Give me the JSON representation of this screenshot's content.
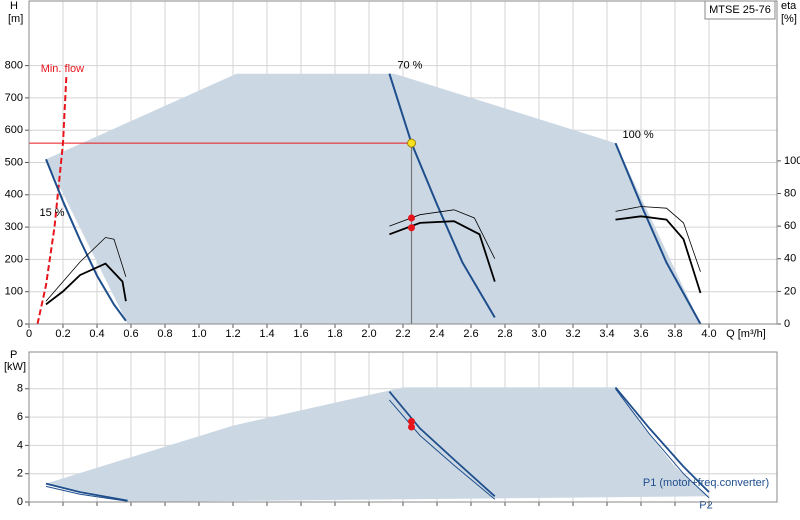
{
  "chart_data": [
    {
      "type": "line",
      "title": "MTSE 25-76",
      "y_label": "H",
      "y_unit": "[m]",
      "y2_label": "eta",
      "y2_unit": "[%]",
      "x_label": "Q [m³/h]",
      "xlim": [
        0,
        4.4
      ],
      "xticks": [
        0,
        0.2,
        0.4,
        0.6,
        0.8,
        {
          "value": 1,
          "label": "1.0"
        },
        1.2,
        1.4,
        1.6,
        1.8,
        {
          "value": 2,
          "label": "2.0"
        },
        2.2,
        2.4,
        2.6,
        2.8,
        {
          "value": 3,
          "label": "3.0"
        },
        3.2,
        3.4,
        3.6,
        3.8,
        {
          "value": 4,
          "label": "4.0"
        }
      ],
      "ylim": [
        0,
        1000
      ],
      "yticks": [
        0,
        100,
        200,
        300,
        400,
        500,
        600,
        700,
        800
      ],
      "y2lim": [
        0,
        198
      ],
      "y2ticks": [
        0,
        20,
        40,
        60,
        80,
        100
      ],
      "grid": true,
      "series": [
        {
          "kind": "area",
          "color": "#cbd8e4",
          "x": [
            0.1,
            1.22,
            2.15,
            3.45,
            3.95,
            0.58,
            0.1
          ],
          "values": [
            510,
            775,
            775,
            560,
            0,
            0,
            510
          ]
        },
        {
          "name": "Min. flow",
          "kind": "line",
          "dash": true,
          "width": 2,
          "color": "#e8141c",
          "x": [
            0.05,
            0.1,
            0.15,
            0.2,
            0.22
          ],
          "values": [
            0,
            120,
            300,
            560,
            770
          ]
        },
        {
          "name": "15 %",
          "kind": "line",
          "width": 2,
          "color": "#1f4e8c",
          "x": [
            0.1,
            0.2,
            0.3,
            0.4,
            0.5,
            0.57
          ],
          "values": [
            510,
            380,
            260,
            150,
            60,
            10
          ]
        },
        {
          "name": "70 %",
          "kind": "line",
          "width": 2,
          "color": "#1f4e8c",
          "x": [
            2.12,
            2.25,
            2.4,
            2.55,
            2.74
          ],
          "values": [
            775,
            560,
            370,
            190,
            20
          ]
        },
        {
          "name": "100 %",
          "kind": "line",
          "width": 2,
          "color": "#1f4e8c",
          "x": [
            3.45,
            3.6,
            3.75,
            3.95
          ],
          "values": [
            560,
            370,
            190,
            0
          ]
        },
        {
          "kind": "line",
          "axis": "y2",
          "width": 1.8,
          "color": "#000000",
          "x": [
            0.1,
            0.2,
            0.3,
            0.45,
            0.55,
            0.57
          ],
          "values": [
            12,
            20,
            30,
            37,
            26,
            14
          ]
        },
        {
          "kind": "line",
          "axis": "y2",
          "width": 0.8,
          "color": "#000000",
          "x": [
            0.1,
            0.2,
            0.3,
            0.45,
            0.5,
            0.57
          ],
          "values": [
            14,
            26,
            38,
            53,
            52,
            29
          ]
        },
        {
          "kind": "line",
          "axis": "y2",
          "width": 1.8,
          "color": "#000000",
          "x": [
            2.12,
            2.3,
            2.5,
            2.65,
            2.74
          ],
          "values": [
            55,
            62,
            63,
            55,
            26
          ]
        },
        {
          "kind": "line",
          "axis": "y2",
          "width": 0.8,
          "color": "#000000",
          "x": [
            2.12,
            2.3,
            2.5,
            2.62,
            2.74
          ],
          "values": [
            60,
            67,
            70,
            65,
            40
          ]
        },
        {
          "kind": "line",
          "axis": "y2",
          "width": 1.8,
          "color": "#000000",
          "x": [
            3.45,
            3.6,
            3.75,
            3.85,
            3.95
          ],
          "values": [
            64,
            66,
            64,
            52,
            19
          ]
        },
        {
          "kind": "line",
          "axis": "y2",
          "width": 0.8,
          "color": "#000000",
          "x": [
            3.45,
            3.6,
            3.75,
            3.85,
            3.95
          ],
          "values": [
            69,
            72,
            71,
            62,
            32
          ]
        }
      ],
      "operating_point": {
        "x": 2.25,
        "y": 560,
        "color": "#f5e11e",
        "guide_color": "#e8141c"
      },
      "points": [
        {
          "x": 2.25,
          "y": 65,
          "axis": "y2",
          "color": "#e8141c"
        },
        {
          "x": 2.25,
          "y": 59,
          "axis": "y2",
          "color": "#e8141c"
        }
      ]
    },
    {
      "type": "line",
      "y_label": "P",
      "y_unit": "[kW]",
      "xlim": [
        0,
        4.4
      ],
      "xticks": [
        0,
        0.2,
        0.4,
        0.6,
        0.8,
        1,
        1.2,
        1.4,
        1.6,
        1.8,
        2,
        2.2,
        2.4,
        2.6,
        2.8,
        3,
        3.2,
        3.4,
        3.6,
        3.8,
        4
      ],
      "x_tick_labels": false,
      "ylim": [
        0,
        10.6
      ],
      "yticks": [
        0,
        2,
        4,
        6,
        8
      ],
      "grid": true,
      "series": [
        {
          "kind": "area",
          "color": "#cbd8e4",
          "x": [
            0.1,
            1.2,
            2.2,
            3.45,
            3.6,
            3.8,
            4.0,
            0.58,
            0.1
          ],
          "values": [
            1.3,
            5.4,
            8.1,
            8.1,
            5.5,
            2.5,
            0.4,
            0,
            1.3
          ]
        },
        {
          "kind": "line",
          "width": 1.8,
          "color": "#1f4e8c",
          "x": [
            0.1,
            0.3,
            0.58
          ],
          "values": [
            1.3,
            0.7,
            0.1
          ]
        },
        {
          "kind": "line",
          "width": 1,
          "color": "#1f4e8c",
          "x": [
            0.1,
            0.3,
            0.58
          ],
          "values": [
            1.1,
            0.55,
            0.05
          ]
        },
        {
          "kind": "line",
          "width": 1.8,
          "color": "#1f4e8c",
          "x": [
            2.12,
            2.3,
            2.5,
            2.74
          ],
          "values": [
            7.8,
            5.2,
            3.0,
            0.4
          ]
        },
        {
          "kind": "line",
          "width": 1,
          "color": "#1f4e8c",
          "x": [
            2.12,
            2.3,
            2.5,
            2.74
          ],
          "values": [
            7.2,
            4.7,
            2.6,
            0.2
          ]
        },
        {
          "name": "P1 (motor+freq.converter)",
          "kind": "line",
          "width": 1.8,
          "color": "#1f4e8c",
          "x": [
            3.45,
            3.65,
            3.85,
            4.0
          ],
          "values": [
            8.1,
            5.2,
            2.5,
            0.7
          ]
        },
        {
          "name": "P2",
          "kind": "line",
          "width": 1,
          "color": "#1f4e8c",
          "x": [
            3.45,
            3.65,
            3.85,
            4.0
          ],
          "values": [
            8.0,
            4.8,
            2.0,
            0.3
          ]
        }
      ],
      "points": [
        {
          "x": 2.25,
          "y": 5.7,
          "color": "#e8141c"
        },
        {
          "x": 2.25,
          "y": 5.3,
          "color": "#e8141c"
        }
      ]
    }
  ]
}
